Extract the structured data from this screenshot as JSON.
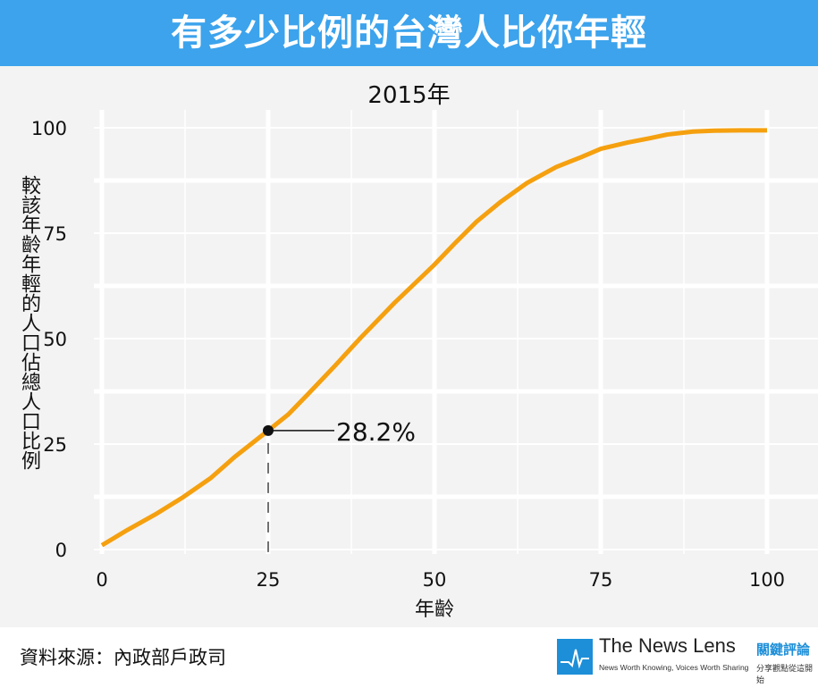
{
  "header": {
    "title": "有多少比例的台灣人比你年輕"
  },
  "chart_data": {
    "type": "line",
    "title": "2015年",
    "xlabel": "年齡",
    "ylabel": "較該年齡年輕的人口佔總人口比例",
    "xlim": [
      0,
      100
    ],
    "ylim": [
      0,
      100
    ],
    "xticks": [
      "0",
      "25",
      "50",
      "75",
      "100"
    ],
    "yticks": [
      "0",
      "25",
      "50",
      "75",
      "100"
    ],
    "grid": true,
    "series": [
      {
        "name": "2015",
        "color": "#f5a00f",
        "x": [
          0,
          3.8,
          8,
          12.2,
          16.4,
          20,
          25,
          28,
          30.9,
          35,
          38.9,
          44,
          49.9,
          53,
          56.3,
          60,
          63.9,
          68.3,
          72,
          75,
          79,
          82.3,
          85,
          88.9,
          92,
          96,
          100
        ],
        "y": [
          1,
          4.6,
          8.3,
          12.4,
          17,
          22,
          28.2,
          32,
          36.7,
          43.5,
          50.2,
          58.5,
          67.4,
          72.5,
          77.7,
          82.5,
          86.9,
          90.7,
          93,
          95,
          96.5,
          97.5,
          98.4,
          99.1,
          99.3,
          99.4,
          99.4
        ]
      }
    ],
    "annotation": {
      "x": 25,
      "y": 28.2,
      "label": "28.2%"
    }
  },
  "footer": {
    "source": "資料來源：內政部戶政司",
    "logo": {
      "name": "The News Lens",
      "name_cn": "關鍵評論",
      "tagline": "News Worth Knowing, Voices Worth Sharing",
      "tagline_cn": "分享觀點從這開始"
    }
  }
}
